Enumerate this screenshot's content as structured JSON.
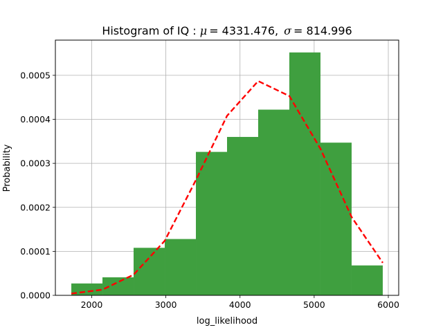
{
  "chart_data": {
    "type": "bar",
    "title": {
      "prefix": "Histogram of IQ : ",
      "mu_symbol": "μ",
      "mu_value": "= 4331.476,",
      "sigma_symbol": "σ",
      "sigma_value": "= 814.996"
    },
    "xlabel": "log_likelihood",
    "ylabel": "Probability",
    "xlim": [
      1510,
      6140
    ],
    "ylim": [
      0,
      0.00058
    ],
    "x_ticks": [
      2000,
      3000,
      4000,
      5000,
      6000
    ],
    "x_tick_labels": [
      "2000",
      "3000",
      "4000",
      "5000",
      "6000"
    ],
    "y_ticks": [
      0,
      0.0001,
      0.0002,
      0.0003,
      0.0004,
      0.0005
    ],
    "y_tick_labels": [
      "0.0000",
      "0.0001",
      "0.0002",
      "0.0003",
      "0.0004",
      "0.0005"
    ],
    "grid": true,
    "bins": {
      "edges": [
        1725,
        2145,
        2565,
        2985,
        3405,
        3825,
        4245,
        4665,
        5085,
        5505,
        5925
      ],
      "values": [
        2.7e-05,
        4.1e-05,
        0.000108,
        0.000128,
        0.000326,
        0.00036,
        0.000422,
        0.000552,
        0.000347,
        6.8e-05
      ],
      "color": "#3f9f3f"
    },
    "fit_line": {
      "x": [
        1725,
        2145,
        2565,
        2985,
        3405,
        3825,
        4245,
        4665,
        5085,
        5505,
        5925
      ],
      "y": [
        4e-06,
        1.3e-05,
        4.7e-05,
        0.000124,
        0.000262,
        0.000408,
        0.000487,
        0.000453,
        0.000333,
        0.000178,
        7.4e-05
      ],
      "color": "#ff0000",
      "style": "dashed"
    }
  }
}
